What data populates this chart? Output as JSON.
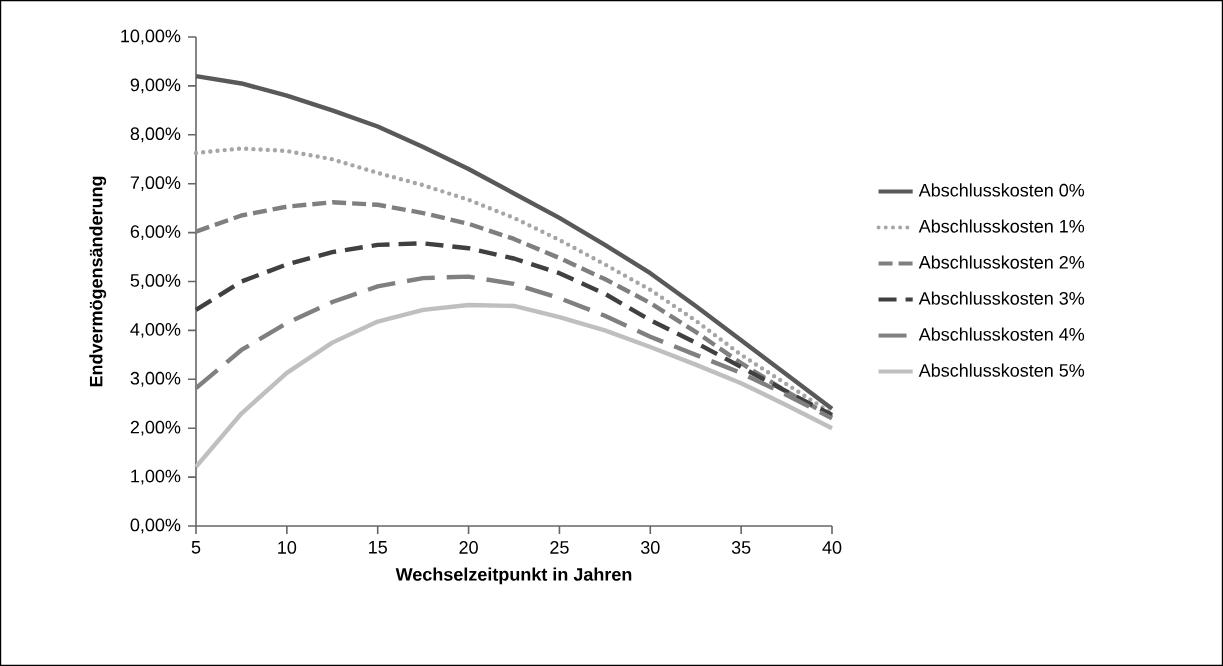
{
  "chart_data": {
    "type": "line",
    "xlabel": "Wechselzeitpunkt in Jahren",
    "ylabel": "Endvermögensänderung",
    "x": [
      5,
      7.5,
      10,
      12.5,
      15,
      17.5,
      20,
      22.5,
      25,
      27.5,
      30,
      32.5,
      35,
      37.5,
      40
    ],
    "xlim": [
      5,
      40
    ],
    "xticks": [
      5,
      10,
      15,
      20,
      25,
      30,
      35,
      40
    ],
    "ylim": [
      0,
      10
    ],
    "yticks": [
      {
        "value": 0,
        "label": "0,00%"
      },
      {
        "value": 1,
        "label": "1,00%"
      },
      {
        "value": 2,
        "label": "2,00%"
      },
      {
        "value": 3,
        "label": "3,00%"
      },
      {
        "value": 4,
        "label": "4,00%"
      },
      {
        "value": 5,
        "label": "5,00%"
      },
      {
        "value": 6,
        "label": "6,00%"
      },
      {
        "value": 7,
        "label": "7,00%"
      },
      {
        "value": 8,
        "label": "8,00%"
      },
      {
        "value": 9,
        "label": "9,00%"
      },
      {
        "value": 10,
        "label": "10,00%"
      }
    ],
    "grid": false,
    "legend": "right",
    "marker": "none",
    "series": [
      {
        "name": "Abschlusskosten 0%",
        "color": "#595959",
        "line_style": "solid",
        "values": [
          9.2,
          9.05,
          8.8,
          8.5,
          8.17,
          7.75,
          7.3,
          6.8,
          6.3,
          5.75,
          5.17,
          4.5,
          3.8,
          3.1,
          2.4
        ]
      },
      {
        "name": "Abschlusskosten 1%",
        "color": "#a6a6a6",
        "line_style": "dotted",
        "values": [
          7.63,
          7.72,
          7.67,
          7.5,
          7.22,
          6.97,
          6.67,
          6.3,
          5.85,
          5.35,
          4.83,
          4.2,
          3.5,
          2.9,
          2.3
        ]
      },
      {
        "name": "Abschlusskosten 2%",
        "color": "#7f7f7f",
        "line_style": "dashed",
        "values": [
          6.02,
          6.35,
          6.53,
          6.62,
          6.57,
          6.4,
          6.18,
          5.87,
          5.48,
          5.05,
          4.56,
          3.97,
          3.33,
          2.75,
          2.23
        ]
      },
      {
        "name": "Abschlusskosten 3%",
        "color": "#404040",
        "line_style": "dashed",
        "values": [
          4.42,
          5.0,
          5.35,
          5.6,
          5.75,
          5.78,
          5.68,
          5.47,
          5.17,
          4.75,
          4.21,
          3.75,
          3.25,
          2.75,
          2.27
        ]
      },
      {
        "name": "Abschlusskosten 4%",
        "color": "#808080",
        "line_style": "dashed",
        "values": [
          2.82,
          3.6,
          4.15,
          4.58,
          4.9,
          5.07,
          5.1,
          4.95,
          4.66,
          4.3,
          3.87,
          3.5,
          3.13,
          2.68,
          2.2
        ]
      },
      {
        "name": "Abschlusskosten 5%",
        "color": "#bfbfbf",
        "line_style": "solid",
        "values": [
          1.21,
          2.3,
          3.13,
          3.75,
          4.18,
          4.42,
          4.52,
          4.5,
          4.27,
          4.0,
          3.66,
          3.3,
          2.92,
          2.47,
          2.0
        ]
      }
    ]
  }
}
